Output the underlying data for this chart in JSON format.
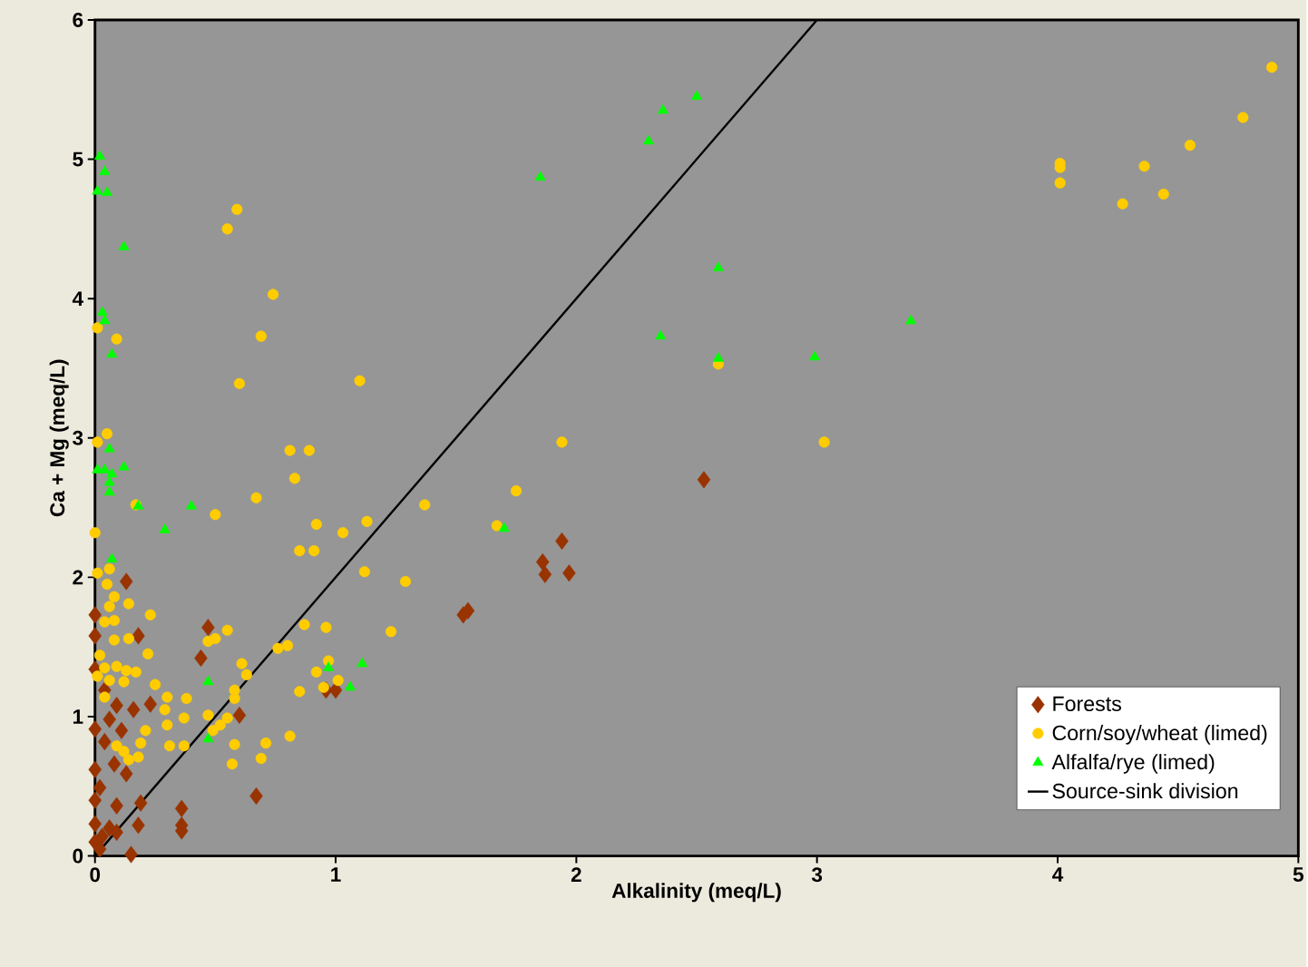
{
  "chart_data": {
    "type": "scatter",
    "xlabel": "Alkalinity (meq/L)",
    "ylabel": "Ca + Mg (meq/L)",
    "xlim": [
      0,
      5
    ],
    "ylim": [
      0,
      6
    ],
    "xticks": [
      0,
      1,
      2,
      3,
      4,
      5
    ],
    "yticks": [
      0,
      1,
      2,
      3,
      4,
      5,
      6
    ],
    "legend": "bottom right",
    "series": [
      {
        "name": "Forests",
        "color": "#993300",
        "marker": "diamond",
        "x": [
          0,
          0,
          0.13,
          0.18,
          0,
          0.47,
          0.44,
          0,
          0.09,
          0.16,
          0.23,
          0.6,
          0,
          0.08,
          0.13,
          0,
          0.09,
          0.19,
          0,
          0.06,
          0.18,
          0,
          0.02,
          0.15,
          0.36,
          0.36,
          0.36,
          0.67,
          1.53,
          1.55,
          1.86,
          1.87,
          1.94,
          1.97,
          2.53,
          0.96,
          1.0,
          0.04,
          0.11,
          0.04,
          0.02,
          0.09,
          0.06,
          0.03
        ],
        "values": [
          1.73,
          1.58,
          1.97,
          1.58,
          1.34,
          1.64,
          1.42,
          0.91,
          1.08,
          1.05,
          1.09,
          1.01,
          0.62,
          0.66,
          0.59,
          0.4,
          0.36,
          0.38,
          0.23,
          0.2,
          0.22,
          0.1,
          0.05,
          0.01,
          0.34,
          0.22,
          0.18,
          0.43,
          1.73,
          1.76,
          2.11,
          2.02,
          2.26,
          2.03,
          2.7,
          1.19,
          1.19,
          0.82,
          0.9,
          1.19,
          0.49,
          0.17,
          0.98,
          0.14
        ]
      },
      {
        "name": "Corn/soy/wheat (limed)",
        "color": "#ffcc00",
        "marker": "circle",
        "x": [
          4.89,
          4.77,
          4.55,
          4.36,
          4.01,
          4.01,
          4.01,
          4.27,
          4.44,
          3.03,
          2.59,
          1.94,
          1.75,
          1.67,
          1.37,
          1.29,
          1.23,
          1.12,
          1.13,
          1.03,
          1.1,
          0.92,
          0.91,
          0.85,
          0.83,
          0.81,
          0.89,
          0.74,
          0.69,
          0.6,
          0.59,
          0.55,
          0.67,
          0.5,
          0.96,
          0.87,
          0.8,
          0.76,
          0.97,
          0.92,
          1.01,
          0.95,
          0.85,
          0.81,
          0.71,
          0.69,
          0.57,
          0.58,
          0.55,
          0.58,
          0.58,
          0.63,
          0.61,
          0.55,
          0.5,
          0.47,
          0.47,
          0.52,
          0.49,
          0.38,
          0.37,
          0.3,
          0.29,
          0.3,
          0.31,
          0.37,
          0.25,
          0.22,
          0.23,
          0.21,
          0.19,
          0.18,
          0.14,
          0.12,
          0.09,
          0.17,
          0.13,
          0.09,
          0.04,
          0.06,
          0.12,
          0.04,
          0.01,
          0.02,
          0.08,
          0.14,
          0.14,
          0.08,
          0.08,
          0.04,
          0.06,
          0.05,
          0.01,
          0.06,
          0,
          0.17,
          0.01,
          0.05,
          0.09,
          0.01
        ],
        "values": [
          5.66,
          5.3,
          5.1,
          4.95,
          4.97,
          4.94,
          4.83,
          4.68,
          4.75,
          2.97,
          3.53,
          2.97,
          2.62,
          2.37,
          2.52,
          1.97,
          1.61,
          2.04,
          2.4,
          2.32,
          3.41,
          2.38,
          2.19,
          2.19,
          2.71,
          2.91,
          2.91,
          4.03,
          3.73,
          3.39,
          4.64,
          4.5,
          2.57,
          2.45,
          1.64,
          1.66,
          1.51,
          1.49,
          1.4,
          1.32,
          1.26,
          1.21,
          1.18,
          0.86,
          0.81,
          0.7,
          0.66,
          0.8,
          0.99,
          1.13,
          1.19,
          1.3,
          1.38,
          1.62,
          1.56,
          1.54,
          1.01,
          0.94,
          0.9,
          1.13,
          0.99,
          1.14,
          1.05,
          0.94,
          0.79,
          0.79,
          1.23,
          1.45,
          1.73,
          0.9,
          0.81,
          0.71,
          0.69,
          0.75,
          0.79,
          1.32,
          1.33,
          1.36,
          1.35,
          1.26,
          1.25,
          1.14,
          1.29,
          1.44,
          1.55,
          1.56,
          1.81,
          1.86,
          1.69,
          1.68,
          1.79,
          1.95,
          2.03,
          2.06,
          2.32,
          2.52,
          2.97,
          3.03,
          3.71,
          3.79
        ]
      },
      {
        "name": "Alfalfa/rye (limed)",
        "color": "#00ff00",
        "marker": "triangle",
        "x": [
          2.5,
          2.36,
          2.3,
          1.85,
          2.59,
          2.35,
          2.59,
          2.99,
          3.39,
          1.7,
          1.11,
          1.06,
          0.97,
          0.47,
          0.47,
          0.4,
          0.29,
          0.18,
          0.07,
          0.02,
          0.04,
          0.01,
          0.05,
          0.12,
          0.03,
          0.04,
          0.07,
          0.06,
          0.01,
          0.04,
          0.07,
          0.06,
          0.12,
          0.06
        ],
        "values": [
          5.45,
          5.35,
          5.13,
          4.87,
          4.22,
          3.73,
          3.57,
          3.58,
          3.84,
          2.35,
          1.38,
          1.21,
          1.35,
          1.25,
          0.84,
          2.51,
          2.34,
          2.51,
          2.13,
          5.02,
          4.91,
          4.77,
          4.76,
          4.37,
          3.9,
          3.84,
          3.6,
          2.92,
          2.77,
          2.77,
          2.74,
          2.61,
          2.79,
          2.68
        ]
      },
      {
        "name": "Source-sink division",
        "type": "line",
        "color": "#000000",
        "marker": "none",
        "x": [
          0,
          3
        ],
        "values": [
          0,
          6
        ]
      }
    ]
  }
}
